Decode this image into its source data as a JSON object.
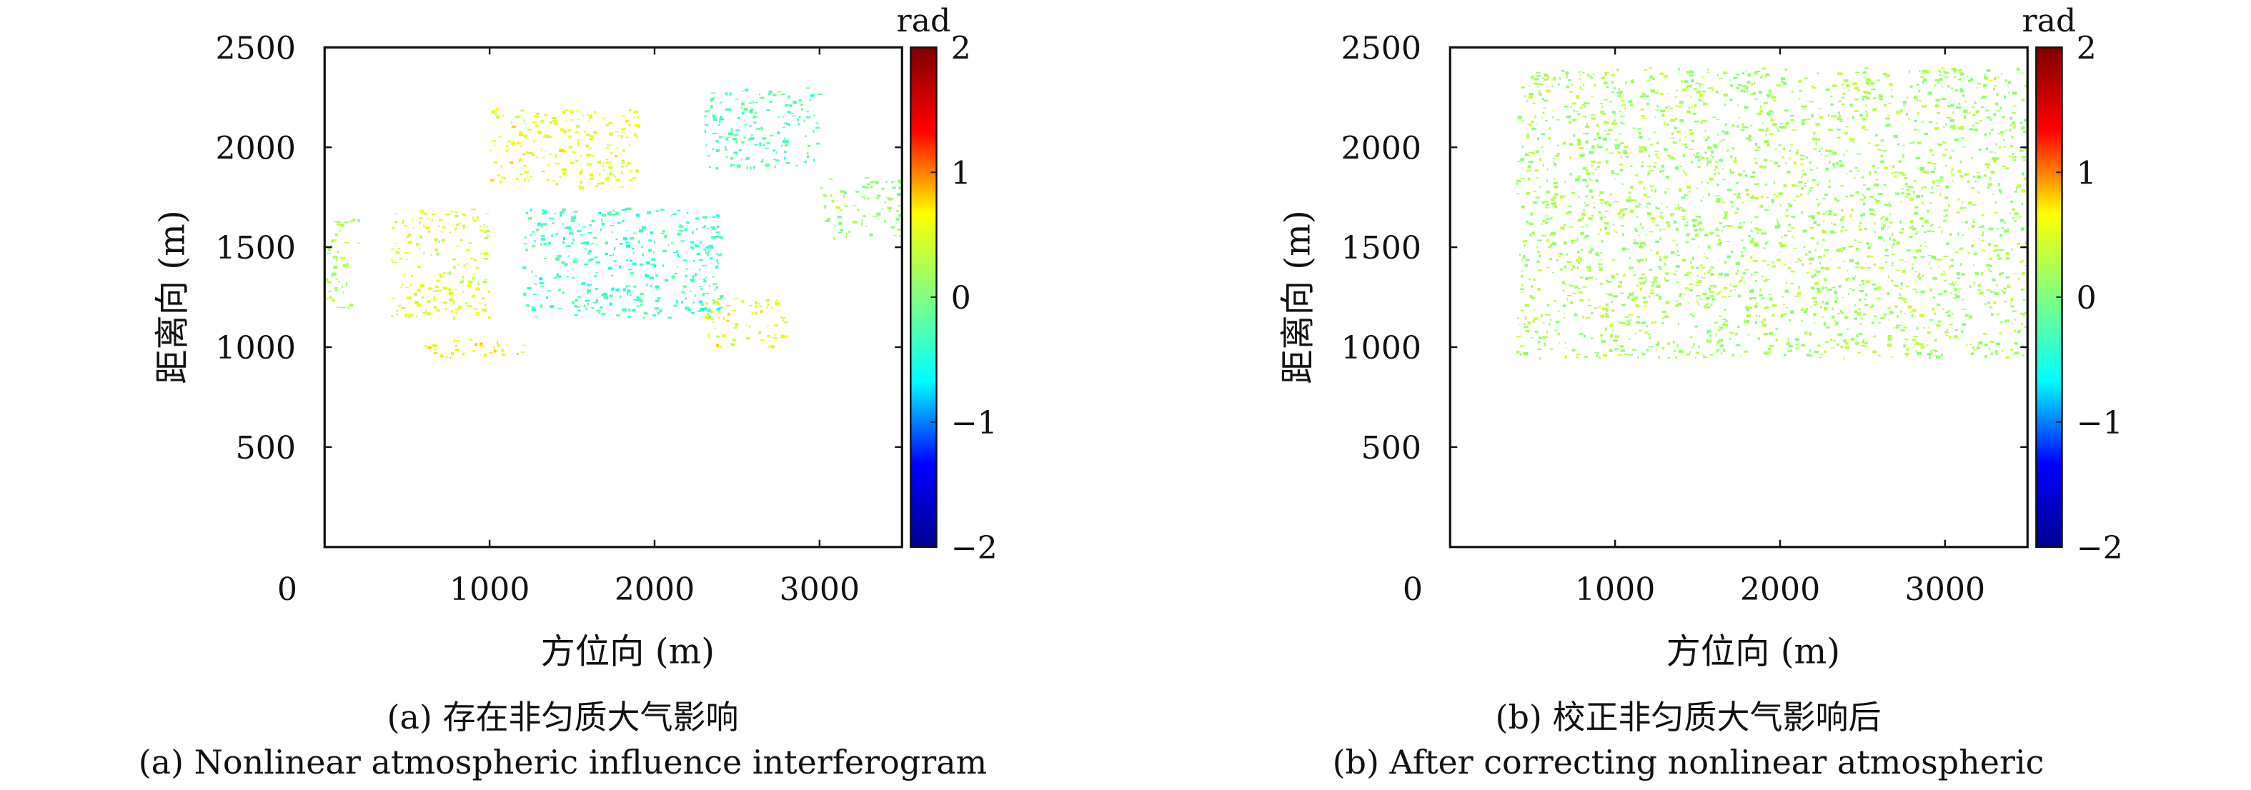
{
  "chart_data": [
    {
      "type": "heatmap",
      "panel_id": "a",
      "title": "",
      "xlabel": "方位向 (m)",
      "ylabel": "距离向 (m)",
      "xlim": [
        0,
        3500
      ],
      "ylim": [
        0,
        2500
      ],
      "x_ticks": [
        "0",
        "1000",
        "2000",
        "3000"
      ],
      "y_ticks": [
        "500",
        "1000",
        "1500",
        "2000",
        "2500"
      ],
      "colorbar": {
        "label": "rad",
        "range": [
          -2,
          2
        ],
        "ticks": [
          "2",
          "1",
          "0",
          "−1",
          "−2"
        ],
        "colormap": "jet"
      },
      "caption_zh": "(a) 存在非匀质大气影响",
      "caption_en": "(a) Nonlinear atmospheric influence interferogram",
      "dominant_value_range": [
        -0.6,
        0.7
      ],
      "regions": [
        {
          "x": [
            1000,
            1900
          ],
          "y": [
            1800,
            2200
          ],
          "value": 0.55
        },
        {
          "x": [
            400,
            1000
          ],
          "y": [
            1150,
            1700
          ],
          "value": 0.45
        },
        {
          "x": [
            1200,
            2400
          ],
          "y": [
            1150,
            1700
          ],
          "value": -0.35
        },
        {
          "x": [
            2300,
            3000
          ],
          "y": [
            1900,
            2300
          ],
          "value": -0.25
        },
        {
          "x": [
            3000,
            3500
          ],
          "y": [
            1550,
            1850
          ],
          "value": 0.15
        },
        {
          "x": [
            600,
            1200
          ],
          "y": [
            950,
            1050
          ],
          "value": 0.65
        },
        {
          "x": [
            2300,
            2800
          ],
          "y": [
            1000,
            1250
          ],
          "value": 0.55
        },
        {
          "x": [
            0,
            200
          ],
          "y": [
            1200,
            1650
          ],
          "value": 0.3
        }
      ]
    },
    {
      "type": "heatmap",
      "panel_id": "b",
      "title": "",
      "xlabel": "方位向 (m)",
      "ylabel": "距离向 (m)",
      "xlim": [
        0,
        3500
      ],
      "ylim": [
        0,
        2500
      ],
      "x_ticks": [
        "0",
        "1000",
        "2000",
        "3000"
      ],
      "y_ticks": [
        "500",
        "1000",
        "1500",
        "2000",
        "2500"
      ],
      "colorbar": {
        "label": "rad",
        "range": [
          -2,
          2
        ],
        "ticks": [
          "2",
          "1",
          "0",
          "−1",
          "−2"
        ],
        "colormap": "jet"
      },
      "caption_zh": "(b) 校正非匀质大气影响后",
      "caption_en": "(b)  After correcting nonlinear atmospheric",
      "dominant_value_range": [
        0.05,
        0.35
      ],
      "regions": [
        {
          "x": [
            400,
            3500
          ],
          "y": [
            950,
            2400
          ],
          "value": 0.2
        }
      ]
    }
  ],
  "colors": {
    "axis": "#111111",
    "jet_stops": [
      "#00008f",
      "#0000ff",
      "#00ffff",
      "#80ff80",
      "#ffff00",
      "#ff0000",
      "#800000"
    ]
  }
}
